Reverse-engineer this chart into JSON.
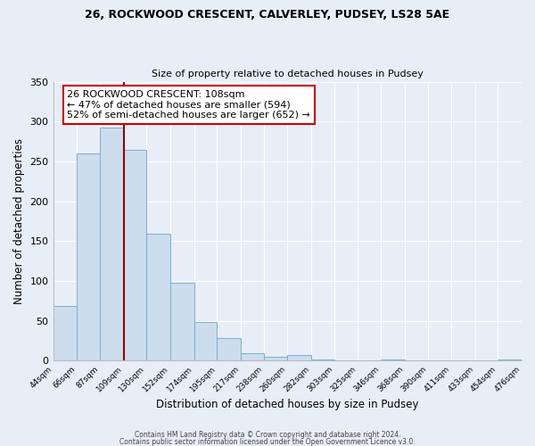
{
  "title1": "26, ROCKWOOD CRESCENT, CALVERLEY, PUDSEY, LS28 5AE",
  "title2": "Size of property relative to detached houses in Pudsey",
  "xlabel": "Distribution of detached houses by size in Pudsey",
  "ylabel": "Number of detached properties",
  "bin_edges": [
    44,
    66,
    87,
    109,
    130,
    152,
    174,
    195,
    217,
    238,
    260,
    282,
    303,
    325,
    346,
    368,
    390,
    411,
    433,
    454,
    476
  ],
  "counts": [
    69,
    260,
    293,
    265,
    159,
    98,
    49,
    29,
    10,
    5,
    7,
    2,
    1,
    0,
    2,
    0,
    1,
    0,
    1,
    2
  ],
  "bar_facecolor": "#ccdded",
  "bar_edgecolor": "#7aaed1",
  "vline_x": 109,
  "vline_color": "#990000",
  "ylim": [
    0,
    350
  ],
  "yticks": [
    0,
    50,
    100,
    150,
    200,
    250,
    300,
    350
  ],
  "annotation_title": "26 ROCKWOOD CRESCENT: 108sqm",
  "annotation_line2": "← 47% of detached houses are smaller (594)",
  "annotation_line3": "52% of semi-detached houses are larger (652) →",
  "annotation_box_edgecolor": "#cc0000",
  "footer1": "Contains HM Land Registry data © Crown copyright and database right 2024.",
  "footer2": "Contains public sector information licensed under the Open Government Licence v3.0.",
  "bg_color": "#e8eef8",
  "plot_bg_color": "#e8eef8"
}
